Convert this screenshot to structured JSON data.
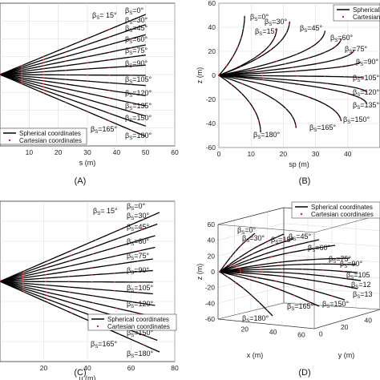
{
  "chart_data": [
    {
      "type": "line",
      "panel_label": "(A)",
      "xlabel": "s (m)",
      "ylabel": "",
      "xlim": [
        0,
        60
      ],
      "x_ticks": [
        "10",
        "20",
        "30",
        "40",
        "50",
        "60"
      ],
      "grid": true,
      "legend": {
        "placement": "bottom-left",
        "entries": [
          "Spherical coordinates",
          "Cartesian coordinates"
        ]
      },
      "beta_labels": [
        "βS= 15°",
        "βS=0°",
        "βS=30°",
        "βS=45°",
        "βS=60°",
        "βS=75°",
        "βS=90°",
        "βS=105°",
        "βS=120°",
        "βS=135°",
        "βS=150°",
        "βS=165°",
        "βS=180°"
      ],
      "series": [
        {
          "name": "βS=0°",
          "end_s": 50
        },
        {
          "name": "βS=15°",
          "end_s": 50
        },
        {
          "name": "βS=30°",
          "end_s": 50
        },
        {
          "name": "βS=45°",
          "end_s": 50
        },
        {
          "name": "βS=60°",
          "end_s": 50
        },
        {
          "name": "βS=75°",
          "end_s": 50
        },
        {
          "name": "βS=90°",
          "end_s": 50
        },
        {
          "name": "βS=105°",
          "end_s": 50
        },
        {
          "name": "βS=120°",
          "end_s": 50
        },
        {
          "name": "βS=135°",
          "end_s": 50
        },
        {
          "name": "βS=150°",
          "end_s": 50
        },
        {
          "name": "βS=165°",
          "end_s": 50
        },
        {
          "name": "βS=180°",
          "end_s": 50
        }
      ]
    },
    {
      "type": "line",
      "panel_label": "(B)",
      "xlabel": "sp (m)",
      "ylabel": "z (m)",
      "xlim": [
        0,
        50
      ],
      "ylim": [
        -60,
        60
      ],
      "x_ticks": [
        "0",
        "10",
        "20",
        "30",
        "40"
      ],
      "y_ticks": [
        "60",
        "40",
        "20",
        "0",
        "-20",
        "-40",
        "-60"
      ],
      "grid": true,
      "legend": {
        "placement": "top-right",
        "entries": [
          "Spherical coo",
          "Cartesian coor"
        ]
      },
      "beta_labels": [
        "βS=0°",
        "βS=30°",
        "βS=15°",
        "βS=45°",
        "βS=60°",
        "βS=75°",
        "βS=90°",
        "βS=105°",
        "βS=120°",
        "βS=135°",
        "βS=150°",
        "βS=165°",
        "βS=180°"
      ],
      "series": [
        {
          "name": "βS=0°",
          "end": [
            8,
            52
          ]
        },
        {
          "name": "βS=15°",
          "end": [
            18,
            41
          ]
        },
        {
          "name": "βS=30°",
          "end": [
            22,
            47
          ]
        },
        {
          "name": "βS=45°",
          "end": [
            33,
            39
          ]
        },
        {
          "name": "βS=60°",
          "end": [
            38,
            32
          ]
        },
        {
          "name": "βS=75°",
          "end": [
            42,
            22
          ]
        },
        {
          "name": "βS=90°",
          "end": [
            44,
            12
          ]
        },
        {
          "name": "βS=105°",
          "end": [
            45,
            -2
          ]
        },
        {
          "name": "βS=120°",
          "end": [
            46,
            -15
          ]
        },
        {
          "name": "βS=135°",
          "end": [
            46,
            -25
          ]
        },
        {
          "name": "βS=150°",
          "end": [
            38,
            -40
          ]
        },
        {
          "name": "βS=165°",
          "end": [
            24,
            -46
          ]
        },
        {
          "name": "βS=180°",
          "end": [
            13,
            -50
          ]
        }
      ]
    },
    {
      "type": "line",
      "panel_label": "(C)",
      "xlabel": "u (m)",
      "ylabel": "",
      "xlim": [
        0,
        80
      ],
      "x_ticks": [
        "20",
        "40",
        "60",
        "80"
      ],
      "grid": true,
      "legend": {
        "placement": "bottom-right",
        "entries": [
          "Spherical coordinates",
          "Cartesian coordinates"
        ]
      },
      "beta_labels": [
        "βS= 15°",
        "βS=0°",
        "βS=30°",
        "βS=45°",
        "βS=60°",
        "βS=75°",
        "βS=90°",
        "βS=105°",
        "βS=120°",
        "βS=135°",
        "βS=150°",
        "βS=165°",
        "βS=180°"
      ],
      "series": [
        {
          "name": "βS=0°",
          "end_u": 73
        },
        {
          "name": "βS=15°",
          "end_u": 72
        },
        {
          "name": "βS=30°",
          "end_u": 71
        },
        {
          "name": "βS=45°",
          "end_u": 71
        },
        {
          "name": "βS=60°",
          "end_u": 70
        },
        {
          "name": "βS=75°",
          "end_u": 70
        },
        {
          "name": "βS=90°",
          "end_u": 70
        },
        {
          "name": "βS=105°",
          "end_u": 70
        },
        {
          "name": "βS=120°",
          "end_u": 71
        },
        {
          "name": "βS=135°",
          "end_u": 71
        },
        {
          "name": "βS=150°",
          "end_u": 72
        },
        {
          "name": "βS=165°",
          "end_u": 72
        },
        {
          "name": "βS=180°",
          "end_u": 73
        }
      ]
    },
    {
      "type": "line",
      "panel_label": "(D)",
      "xlabel": "x (m)",
      "ylabel": "z (m)",
      "zlabel": "y (m)",
      "z_ticks": [
        "60",
        "40",
        "20",
        "0",
        "-20",
        "-40",
        "-60"
      ],
      "x_ticks": [
        "20",
        "40",
        "60"
      ],
      "y_ticks": [
        "0",
        "20",
        "40"
      ],
      "grid": true,
      "legend": {
        "placement": "top-right",
        "entries": [
          "Spherical coordinates",
          "Cartesian coordinates"
        ]
      },
      "beta_labels": [
        "βS=0°",
        "βS=15°",
        "βS=30°",
        "βS=45°",
        "βS=60°",
        "βS=75°",
        "βS=90°",
        "βS=105",
        "βS=12",
        "βS=13",
        "βS=150°",
        "βS=165°",
        "βS=180°"
      ],
      "series": [
        {
          "name": "βS=0°"
        },
        {
          "name": "βS=15°"
        },
        {
          "name": "βS=30°"
        },
        {
          "name": "βS=45°"
        },
        {
          "name": "βS=60°"
        },
        {
          "name": "βS=75°"
        },
        {
          "name": "βS=90°"
        },
        {
          "name": "βS=105°"
        },
        {
          "name": "βS=120°"
        },
        {
          "name": "βS=135°"
        },
        {
          "name": "βS=150°"
        },
        {
          "name": "βS=165°"
        },
        {
          "name": "βS=180°"
        }
      ]
    }
  ],
  "colors": {
    "spherical": "#000000",
    "cartesian": "#e02020",
    "grid": "#dddddd",
    "axis": "#333333"
  }
}
